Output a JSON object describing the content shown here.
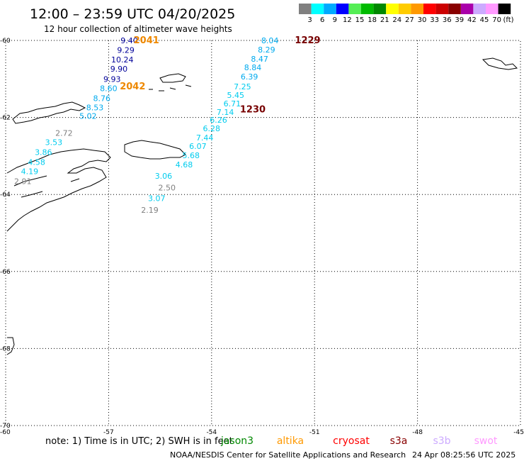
{
  "header": {
    "title": "12:00 – 23:59 UTC 04/20/2025",
    "subtitle": "12 hour collection of altimeter wave heights"
  },
  "legend": {
    "unit": "(ft)",
    "bins": [
      {
        "label": "3",
        "color": "#808080"
      },
      {
        "label": "6",
        "color": "#00ffff"
      },
      {
        "label": "9",
        "color": "#00aaff"
      },
      {
        "label": "12",
        "color": "#0000ff"
      },
      {
        "label": "15",
        "color": "#55ee55"
      },
      {
        "label": "18",
        "color": "#00bb00"
      },
      {
        "label": "21",
        "color": "#008800"
      },
      {
        "label": "24",
        "color": "#ffff00"
      },
      {
        "label": "27",
        "color": "#ffcc00"
      },
      {
        "label": "30",
        "color": "#ff9900"
      },
      {
        "label": "33",
        "color": "#ff0000"
      },
      {
        "label": "36",
        "color": "#cc0000"
      },
      {
        "label": "39",
        "color": "#880000"
      },
      {
        "label": "42",
        "color": "#aa00aa"
      },
      {
        "label": "45",
        "color": "#ccaaff"
      },
      {
        "label": "70",
        "color": "#ff99ff"
      },
      {
        "label": "",
        "color": "#000000"
      }
    ]
  },
  "axes": {
    "lon_labels": [
      "-60",
      "-57",
      "-54",
      "-51",
      "-48",
      "-45"
    ],
    "lat_labels": [
      "-60",
      "-62",
      "-64",
      "-66",
      "-68",
      "-70"
    ],
    "lon_range": [
      -60,
      -45
    ],
    "lat_range": [
      -60,
      -70
    ],
    "grid": "dotted"
  },
  "track_colors": {
    "grey": "#808080",
    "cyan": "#00ccee",
    "sky": "#00aaee",
    "navy": "#000099"
  },
  "observations": [
    {
      "v": "9.40",
      "lon": -56.4,
      "lat": -60.0,
      "c": "navy"
    },
    {
      "v": "9.29",
      "lon": -56.5,
      "lat": -60.25,
      "c": "navy"
    },
    {
      "v": "10.24",
      "lon": -56.6,
      "lat": -60.5,
      "c": "navy"
    },
    {
      "v": "9.90",
      "lon": -56.7,
      "lat": -60.74,
      "c": "navy"
    },
    {
      "v": "9.93",
      "lon": -56.9,
      "lat": -61.0,
      "c": "navy"
    },
    {
      "v": "8.60",
      "lon": -57.0,
      "lat": -61.24,
      "c": "sky"
    },
    {
      "v": "8.76",
      "lon": -57.2,
      "lat": -61.5,
      "c": "sky"
    },
    {
      "v": "8.53",
      "lon": -57.4,
      "lat": -61.74,
      "c": "sky"
    },
    {
      "v": "5.02",
      "lon": -57.6,
      "lat": -61.96,
      "c": "sky"
    },
    {
      "v": "2.72",
      "lon": -58.3,
      "lat": -62.4,
      "c": "grey"
    },
    {
      "v": "3.53",
      "lon": -58.6,
      "lat": -62.64,
      "c": "cyan"
    },
    {
      "v": "3.86",
      "lon": -58.9,
      "lat": -62.9,
      "c": "cyan"
    },
    {
      "v": "4.58",
      "lon": -59.1,
      "lat": -63.16,
      "c": "cyan"
    },
    {
      "v": "4.19",
      "lon": -59.3,
      "lat": -63.4,
      "c": "cyan"
    },
    {
      "v": "2.91",
      "lon": -59.5,
      "lat": -63.66,
      "c": "grey"
    },
    {
      "v": "8.04",
      "lon": -52.3,
      "lat": -60.0,
      "c": "sky"
    },
    {
      "v": "8.29",
      "lon": -52.4,
      "lat": -60.24,
      "c": "sky"
    },
    {
      "v": "8.47",
      "lon": -52.6,
      "lat": -60.48,
      "c": "sky"
    },
    {
      "v": "8.84",
      "lon": -52.8,
      "lat": -60.7,
      "c": "sky"
    },
    {
      "v": "6.39",
      "lon": -52.9,
      "lat": -60.94,
      "c": "sky"
    },
    {
      "v": "7.25",
      "lon": -53.1,
      "lat": -61.2,
      "c": "cyan"
    },
    {
      "v": "5.45",
      "lon": -53.3,
      "lat": -61.42,
      "c": "cyan"
    },
    {
      "v": "6.71",
      "lon": -53.4,
      "lat": -61.64,
      "c": "cyan"
    },
    {
      "v": "7.14",
      "lon": -53.6,
      "lat": -61.86,
      "c": "cyan"
    },
    {
      "v": "6.26",
      "lon": -53.8,
      "lat": -62.06,
      "c": "cyan"
    },
    {
      "v": "6.28",
      "lon": -54.0,
      "lat": -62.28,
      "c": "cyan"
    },
    {
      "v": "7.44",
      "lon": -54.2,
      "lat": -62.52,
      "c": "cyan"
    },
    {
      "v": "6.07",
      "lon": -54.4,
      "lat": -62.74,
      "c": "cyan"
    },
    {
      "v": "5.68",
      "lon": -54.6,
      "lat": -62.98,
      "c": "cyan"
    },
    {
      "v": "4.68",
      "lon": -54.8,
      "lat": -63.22,
      "c": "cyan"
    },
    {
      "v": "3.06",
      "lon": -55.4,
      "lat": -63.52,
      "c": "cyan"
    },
    {
      "v": "2.50",
      "lon": -55.3,
      "lat": -63.82,
      "c": "grey"
    },
    {
      "v": "3.07",
      "lon": -55.6,
      "lat": -64.1,
      "c": "cyan"
    },
    {
      "v": "2.19",
      "lon": -55.8,
      "lat": -64.4,
      "c": "grey"
    }
  ],
  "time_labels": [
    {
      "text": "2041",
      "lon": -55.9,
      "lat": -60.0,
      "color": "#ee8800"
    },
    {
      "text": "2042",
      "lon": -56.3,
      "lat": -61.2,
      "color": "#ee8800"
    },
    {
      "text": "1229",
      "lon": -51.2,
      "lat": -60.0,
      "color": "#770000"
    },
    {
      "text": "1230",
      "lon": -52.8,
      "lat": -61.8,
      "color": "#770000"
    }
  ],
  "footer": {
    "note": "note:  1) Time is in UTC;  2) SWH is in feet",
    "satellites": [
      {
        "name": "jason3",
        "color": "#008800"
      },
      {
        "name": "altika",
        "color": "#ff9900"
      },
      {
        "name": "cryosat",
        "color": "#ff0000"
      },
      {
        "name": "s3a",
        "color": "#880000"
      },
      {
        "name": "s3b",
        "color": "#ccaaff"
      },
      {
        "name": "swot",
        "color": "#ff99ff"
      }
    ],
    "credit": "NOAA/NESDIS Center for Satellite Applications and Research",
    "timestamp": "24 Apr 08:25:56 UTC 2025"
  }
}
